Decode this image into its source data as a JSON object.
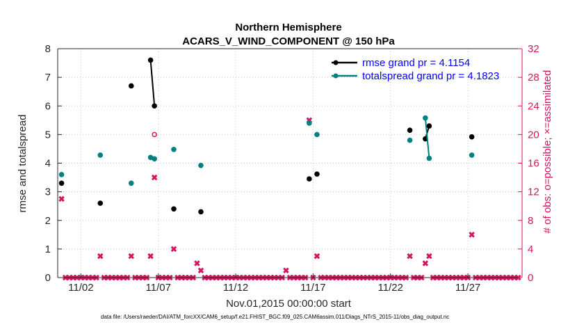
{
  "chart_data": {
    "type": "line",
    "title": "Northern Hemisphere",
    "subtitle": "ACARS_V_WIND_COMPONENT @ 150 hPa",
    "xlabel": "Nov.01,2015 00:00:00 start",
    "ylabel": "rmse and totalspread",
    "y2label": "# of obs: o=possible; ×=assimilated",
    "xlim": [
      0.5,
      30.5
    ],
    "xticks": [
      2,
      7,
      12,
      17,
      22,
      27
    ],
    "xticklabels": [
      "11/02",
      "11/07",
      "11/12",
      "11/17",
      "11/22",
      "11/27"
    ],
    "ylim": [
      0,
      8
    ],
    "yticks": [
      0,
      1,
      2,
      3,
      4,
      5,
      6,
      7,
      8
    ],
    "y2lim": [
      0,
      32
    ],
    "y2ticks": [
      0,
      4,
      8,
      12,
      16,
      20,
      24,
      28,
      32
    ],
    "legend_position": "top-right",
    "colors": {
      "rmse": "#000000",
      "totalspread": "#008080",
      "obs": "#d6155f",
      "legend_text": "#0000ff"
    },
    "series": [
      {
        "name": "rmse grand pr = 4.1154",
        "x": [
          0.75,
          3.25,
          5.25,
          6.5,
          6.75,
          8,
          9.75,
          16.75,
          17.25,
          23.25,
          24.25,
          24.5,
          27.25
        ],
        "values": [
          3.3,
          2.6,
          6.7,
          7.6,
          6.0,
          2.4,
          2.3,
          3.45,
          3.62,
          5.15,
          4.85,
          5.3,
          4.92
        ],
        "lines": [
          [
            6.5,
            6.75
          ],
          [
            24.25,
            24.5
          ]
        ]
      },
      {
        "name": "totalspread grand pr = 4.1823",
        "x": [
          0.75,
          3.25,
          5.25,
          6.5,
          6.75,
          8,
          9.75,
          16.75,
          17.25,
          23.25,
          24.25,
          24.5,
          27.25
        ],
        "values": [
          3.6,
          4.28,
          3.3,
          4.2,
          4.15,
          4.48,
          3.92,
          5.4,
          5.0,
          4.8,
          5.58,
          4.17,
          4.28
        ],
        "lines": [
          [
            24.25,
            24.5
          ]
        ]
      }
    ],
    "obs_possible": {
      "x": [
        6.75
      ],
      "values": [
        20
      ]
    },
    "obs_assimilated": {
      "x": [
        0.75,
        3.25,
        5.25,
        6.5,
        6.75,
        8,
        9.5,
        9.75,
        15.25,
        16.75,
        17.25,
        23.25,
        24.25,
        24.5,
        27.25
      ],
      "values": [
        11,
        3,
        3,
        3,
        14,
        4,
        2,
        1,
        1,
        22,
        3,
        3,
        2,
        3,
        6
      ]
    }
  },
  "footer": "data file: /Users/raeder/DAI/ATM_forcXX/CAM6_setup/f.e21.FHIST_BGC.f09_025.CAM6assim.011/Diags_NTrS_2015-11/obs_diag_output.nc"
}
